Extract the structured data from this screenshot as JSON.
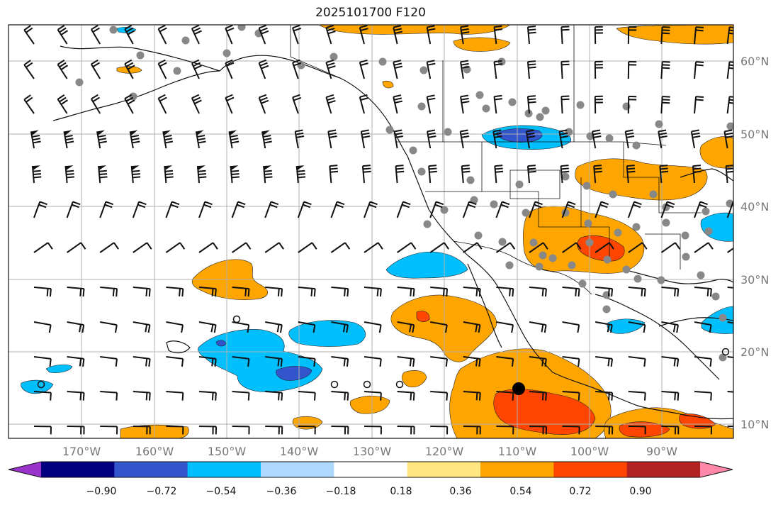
{
  "title": "2025101700 F120",
  "lat_labels": [
    "60°N",
    "50°N",
    "40°N",
    "30°N",
    "20°N",
    "10°N"
  ],
  "lon_labels": [
    "170°W",
    "160°W",
    "150°W",
    "140°W",
    "130°W",
    "120°W",
    "110°W",
    "100°W",
    "90°W"
  ],
  "colorbar": {
    "ticks": [
      "−0.90",
      "−0.72",
      "−0.54",
      "−0.36",
      "−0.18",
      "0.18",
      "0.36",
      "0.54",
      "0.72",
      "0.90"
    ],
    "colors": [
      "#9933cc",
      "#000080",
      "#3355cc",
      "#00bfff",
      "#add8ff",
      "#ffffff",
      "#ffe680",
      "#ffa500",
      "#ff4500",
      "#b22222",
      "#ff88aa"
    ]
  },
  "palette": {
    "orange": "#ffa500",
    "red": "#ff4500",
    "sky": "#00bfff",
    "blue": "#3355cc",
    "station": "#888888"
  }
}
